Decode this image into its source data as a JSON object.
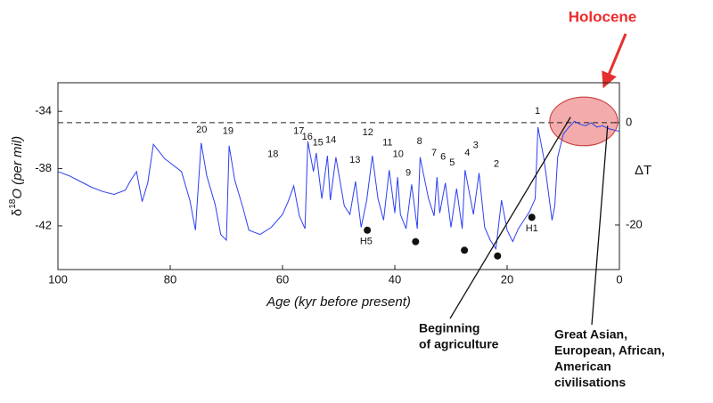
{
  "chart_data": {
    "type": "line",
    "title": "Holocene",
    "xlabel": "Age (kyr before present)",
    "ylabel": {
      "prefix": "δ",
      "sup": "18",
      "suffix": "O (per mil)"
    },
    "y2label": "ΔT",
    "xlim": [
      100,
      0
    ],
    "xticks": [
      100,
      80,
      60,
      40,
      20,
      0
    ],
    "ylim": [
      -45.05,
      -32.0
    ],
    "yticks": [
      -34,
      -38,
      -42
    ],
    "y2lim": [
      -28.7,
      7.8
    ],
    "y2ticks": [
      0,
      -20
    ],
    "hline": {
      "value": 0,
      "axis": "y2",
      "style": "dashed"
    },
    "series": [
      {
        "name": "δ18O",
        "color": "#2b3ff2",
        "x": [
          100,
          98,
          96,
          94,
          92,
          90,
          88,
          87,
          86,
          85,
          84,
          83,
          82,
          81,
          80,
          78,
          76.5,
          75.5,
          74.5,
          73.5,
          72,
          71,
          70,
          69.5,
          68.5,
          67,
          66,
          64,
          62,
          60,
          59,
          58,
          57,
          56,
          55.5,
          54.5,
          54,
          53,
          52,
          51.5,
          50.5,
          49,
          48,
          47,
          46,
          45,
          44,
          43,
          42,
          41,
          40,
          39.5,
          39,
          38,
          37,
          36,
          35.5,
          34,
          33,
          32.5,
          32,
          31,
          30,
          29,
          28,
          27.5,
          26,
          25,
          24,
          23,
          22,
          21,
          20,
          19,
          18,
          17,
          16,
          15,
          14.5,
          13.5,
          13,
          12,
          11.5,
          11,
          10,
          9,
          8,
          7,
          6,
          5,
          4,
          3,
          2,
          1,
          0
        ],
        "values": [
          -38.2,
          -38.5,
          -38.9,
          -39.3,
          -39.6,
          -39.8,
          -39.5,
          -38.8,
          -38.2,
          -40.3,
          -39.0,
          -36.3,
          -36.8,
          -37.3,
          -37.6,
          -38.2,
          -40.2,
          -42.3,
          -36.2,
          -38.5,
          -40.5,
          -42.6,
          -43.0,
          -36.4,
          -38.8,
          -40.8,
          -42.3,
          -42.6,
          -42.1,
          -41.2,
          -40.3,
          -39.2,
          -41.3,
          -42.2,
          -36.1,
          -38.2,
          -36.9,
          -40.1,
          -37.1,
          -40.2,
          -37.2,
          -40.6,
          -41.2,
          -38.9,
          -42.1,
          -40.2,
          -37.1,
          -40.1,
          -41.6,
          -38.1,
          -41.1,
          -38.6,
          -41.2,
          -42.2,
          -39.1,
          -42.2,
          -37.2,
          -40.1,
          -41.3,
          -38.6,
          -41.1,
          -39.0,
          -42.1,
          -39.4,
          -42.2,
          -38.1,
          -41.2,
          -38.3,
          -42.1,
          -43.0,
          -43.6,
          -40.2,
          -42.3,
          -43.1,
          -42.2,
          -41.6,
          -41.0,
          -40.1,
          -35.1,
          -37.2,
          -38.6,
          -41.6,
          -40.6,
          -37.2,
          -35.6,
          -35.1,
          -34.7,
          -34.9,
          -35.0,
          -34.8,
          -35.1,
          -35.0,
          -35.2,
          -35.3,
          -35.4
        ]
      }
    ],
    "annotations": [
      {
        "text": "20",
        "x": 74.4,
        "y": -35.3
      },
      {
        "text": "19",
        "x": 69.7,
        "y": -35.4
      },
      {
        "text": "18",
        "x": 61.7,
        "y": -37.0
      },
      {
        "text": "17",
        "x": 57.1,
        "y": -35.4
      },
      {
        "text": "16",
        "x": 55.6,
        "y": -35.8
      },
      {
        "text": "15",
        "x": 53.7,
        "y": -36.2
      },
      {
        "text": "14",
        "x": 51.4,
        "y": -36.0
      },
      {
        "text": "13",
        "x": 47.1,
        "y": -37.4
      },
      {
        "text": "12",
        "x": 44.8,
        "y": -35.5
      },
      {
        "text": "11",
        "x": 41.3,
        "y": -36.2
      },
      {
        "text": "10",
        "x": 39.4,
        "y": -37.0
      },
      {
        "text": "9",
        "x": 37.6,
        "y": -38.3
      },
      {
        "text": "8",
        "x": 35.6,
        "y": -36.1
      },
      {
        "text": "7",
        "x": 33.0,
        "y": -36.9
      },
      {
        "text": "6",
        "x": 31.4,
        "y": -37.2
      },
      {
        "text": "5",
        "x": 29.8,
        "y": -37.6
      },
      {
        "text": "4",
        "x": 27.1,
        "y": -36.9
      },
      {
        "text": "3",
        "x": 25.6,
        "y": -36.4
      },
      {
        "text": "2",
        "x": 21.9,
        "y": -37.7
      },
      {
        "text": "1",
        "x": 14.6,
        "y": -34.0
      },
      {
        "text": "H5",
        "x": 45.1,
        "y": -43.1
      },
      {
        "text": "H1",
        "x": 15.6,
        "y": -42.2
      }
    ],
    "heinrich_events": {
      "x": [
        44.9,
        36.3,
        27.6,
        21.7,
        15.6
      ],
      "y": [
        -42.3,
        -43.1,
        -43.7,
        -44.1,
        -41.4
      ]
    },
    "highlight": {
      "x": [
        12.4,
        0.3
      ],
      "y": [
        -33.0,
        -36.4
      ],
      "color": "#f2a3a3"
    },
    "callouts": [
      {
        "lines": [
          "Beginning",
          "of agriculture"
        ],
        "x": 8.7,
        "y": -34.4
      },
      {
        "lines": [
          "Great Asian,",
          "European, African,",
          "American",
          "civilisations"
        ],
        "x": 2.1,
        "y": -35.0
      }
    ]
  }
}
